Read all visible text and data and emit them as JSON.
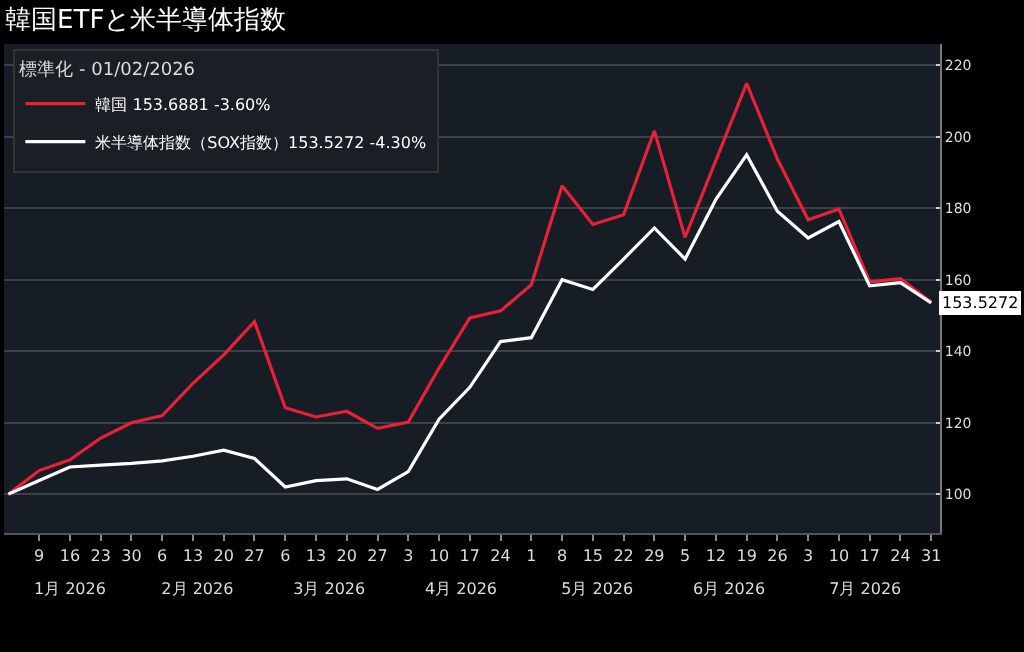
{
  "chart_data": {
    "type": "line",
    "title": "韓国ETFと米半導体指数",
    "legend_title": "標準化 - 01/02/2026",
    "x": [
      "2026-01-02",
      "2026-01-09",
      "2026-01-16",
      "2026-01-23",
      "2026-01-30",
      "2026-02-06",
      "2026-02-13",
      "2026-02-20",
      "2026-02-27",
      "2026-03-06",
      "2026-03-13",
      "2026-03-20",
      "2026-03-27",
      "2026-04-03",
      "2026-04-10",
      "2026-04-17",
      "2026-04-24",
      "2026-05-01",
      "2026-05-08",
      "2026-05-15",
      "2026-05-22",
      "2026-05-29",
      "2026-06-05",
      "2026-06-12",
      "2026-06-19",
      "2026-06-26",
      "2026-07-03",
      "2026-07-10",
      "2026-07-17",
      "2026-07-24",
      "2026-07-31"
    ],
    "series": [
      {
        "name": "韓国 153.6881 -3.60%",
        "color": "#e8203a",
        "values": [
          100,
          106.6,
          109.6,
          115.7,
          120,
          122,
          131,
          139,
          148.3,
          124.2,
          121.6,
          123.2,
          118.4,
          120.2,
          135.3,
          149.3,
          151.3,
          158.6,
          186.3,
          175.5,
          178.2,
          201.7,
          171.9,
          193.4,
          215,
          193.8,
          176.8,
          179.8,
          159.4,
          160.3,
          153.6881
        ]
      },
      {
        "name": "米半導体指数（SOX指数）153.5272 -4.30%",
        "color": "#ffffff",
        "values": [
          100,
          103.8,
          107.6,
          108.1,
          108.6,
          109.3,
          110.6,
          112.3,
          110,
          102,
          103.8,
          104.3,
          101.3,
          106.3,
          121,
          129.9,
          142.7,
          143.8,
          160,
          157.3,
          165.8,
          174.5,
          165.8,
          182.5,
          195,
          179.2,
          171.7,
          176.3,
          158.3,
          159.2,
          153.5272
        ],
        "value_labels": [
          null,
          null,
          null,
          null,
          null,
          null,
          null,
          null,
          null,
          null,
          null,
          null,
          null,
          null,
          null,
          null,
          null,
          null,
          null,
          null,
          null,
          null,
          null,
          null,
          null,
          null,
          null,
          null,
          null,
          null,
          "153.5272"
        ]
      }
    ],
    "xlim": [
      "2026-01-01",
      "2026-08-02"
    ],
    "xticks": [
      {
        "value": "2026-01-09",
        "label": "9"
      },
      {
        "value": "2026-01-16",
        "label": "16"
      },
      {
        "value": "2026-01-23",
        "label": "23"
      },
      {
        "value": "2026-01-30",
        "label": "30"
      },
      {
        "value": "2026-02-06",
        "label": "6"
      },
      {
        "value": "2026-02-13",
        "label": "13"
      },
      {
        "value": "2026-02-20",
        "label": "20"
      },
      {
        "value": "2026-02-27",
        "label": "27"
      },
      {
        "value": "2026-03-06",
        "label": "6"
      },
      {
        "value": "2026-03-13",
        "label": "13"
      },
      {
        "value": "2026-03-20",
        "label": "20"
      },
      {
        "value": "2026-03-27",
        "label": "27"
      },
      {
        "value": "2026-04-03",
        "label": "3"
      },
      {
        "value": "2026-04-10",
        "label": "10"
      },
      {
        "value": "2026-04-17",
        "label": "17"
      },
      {
        "value": "2026-04-24",
        "label": "24"
      },
      {
        "value": "2026-05-01",
        "label": "1"
      },
      {
        "value": "2026-05-08",
        "label": "8"
      },
      {
        "value": "2026-05-15",
        "label": "15"
      },
      {
        "value": "2026-05-22",
        "label": "22"
      },
      {
        "value": "2026-05-29",
        "label": "29"
      },
      {
        "value": "2026-06-05",
        "label": "5"
      },
      {
        "value": "2026-06-12",
        "label": "12"
      },
      {
        "value": "2026-06-19",
        "label": "19"
      },
      {
        "value": "2026-06-26",
        "label": "26"
      },
      {
        "value": "2026-07-03",
        "label": "3"
      },
      {
        "value": "2026-07-10",
        "label": "10"
      },
      {
        "value": "2026-07-17",
        "label": "17"
      },
      {
        "value": "2026-07-24",
        "label": "24"
      },
      {
        "value": "2026-07-31",
        "label": "31"
      }
    ],
    "x2lim": [
      "2026-01-01",
      "2026-08-02"
    ],
    "x2ticks": [
      {
        "value": "2026-01-16",
        "label": "1月 2026"
      },
      {
        "value": "2026-02-14",
        "label": "2月 2026"
      },
      {
        "value": "2026-03-16",
        "label": "3月 2026"
      },
      {
        "value": "2026-04-15",
        "label": "4月 2026"
      },
      {
        "value": "2026-05-16",
        "label": "5月 2026"
      },
      {
        "value": "2026-06-15",
        "label": "6月 2026"
      },
      {
        "value": "2026-07-16",
        "label": "7月 2026"
      }
    ],
    "ylim": [
      89,
      226
    ],
    "yticks": [
      100,
      120,
      140,
      160,
      180,
      200,
      220
    ],
    "grid": "y",
    "legend": "top left",
    "marker": "none",
    "line_style": "solid"
  }
}
